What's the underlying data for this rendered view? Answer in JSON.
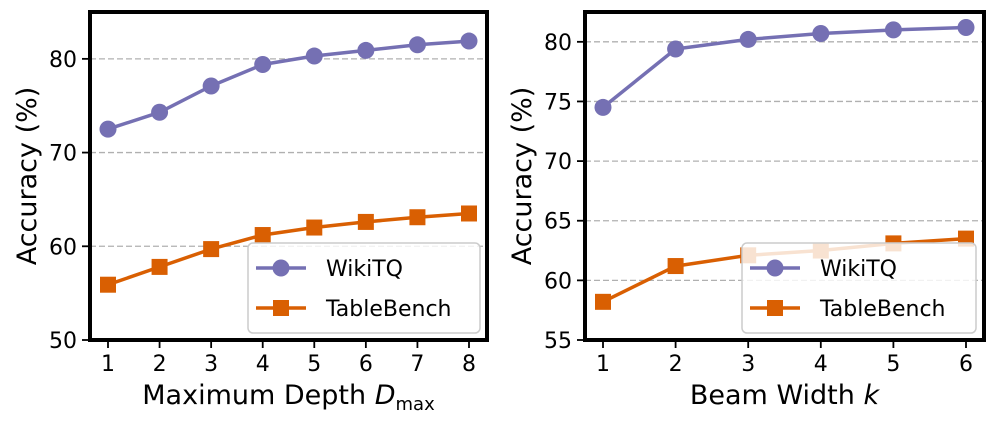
{
  "chart_data": [
    {
      "type": "line",
      "x": [
        1,
        2,
        3,
        4,
        5,
        6,
        7,
        8
      ],
      "xticks": [
        "1",
        "2",
        "3",
        "4",
        "5",
        "6",
        "7",
        "8"
      ],
      "xlabel_prefix": "Maximum Depth ",
      "xlabel_var": "D",
      "xlabel_sub": "max",
      "ylabel": "Accuracy (%)",
      "ylim": [
        50,
        85
      ],
      "yticks": [
        50,
        60,
        70,
        80
      ],
      "grid": "horizontal-dashed",
      "legend_position": "bottom-right",
      "series": [
        {
          "name": "WikiTQ",
          "color": "#7570b3",
          "marker": "circle",
          "values": [
            72.5,
            74.3,
            77.1,
            79.4,
            80.3,
            80.9,
            81.5,
            81.9
          ]
        },
        {
          "name": "TableBench",
          "color": "#d95f02",
          "marker": "square",
          "values": [
            55.9,
            57.8,
            59.7,
            61.2,
            62.0,
            62.6,
            63.1,
            63.5
          ]
        }
      ]
    },
    {
      "type": "line",
      "x": [
        1,
        2,
        3,
        4,
        5,
        6
      ],
      "xticks": [
        "1",
        "2",
        "3",
        "4",
        "5",
        "6"
      ],
      "xlabel_prefix": "Beam Width ",
      "xlabel_var": "k",
      "xlabel_sub": "",
      "ylabel": "Accuracy (%)",
      "ylim": [
        55,
        82.5
      ],
      "yticks": [
        55,
        60,
        65,
        70,
        75,
        80
      ],
      "grid": "horizontal-dashed",
      "legend_position": "bottom-right",
      "series": [
        {
          "name": "WikiTQ",
          "color": "#7570b3",
          "marker": "circle",
          "values": [
            74.5,
            79.4,
            80.2,
            80.7,
            81.0,
            81.2
          ]
        },
        {
          "name": "TableBench",
          "color": "#d95f02",
          "marker": "square",
          "values": [
            58.2,
            61.2,
            62.1,
            62.5,
            63.1,
            63.5
          ]
        }
      ]
    }
  ]
}
